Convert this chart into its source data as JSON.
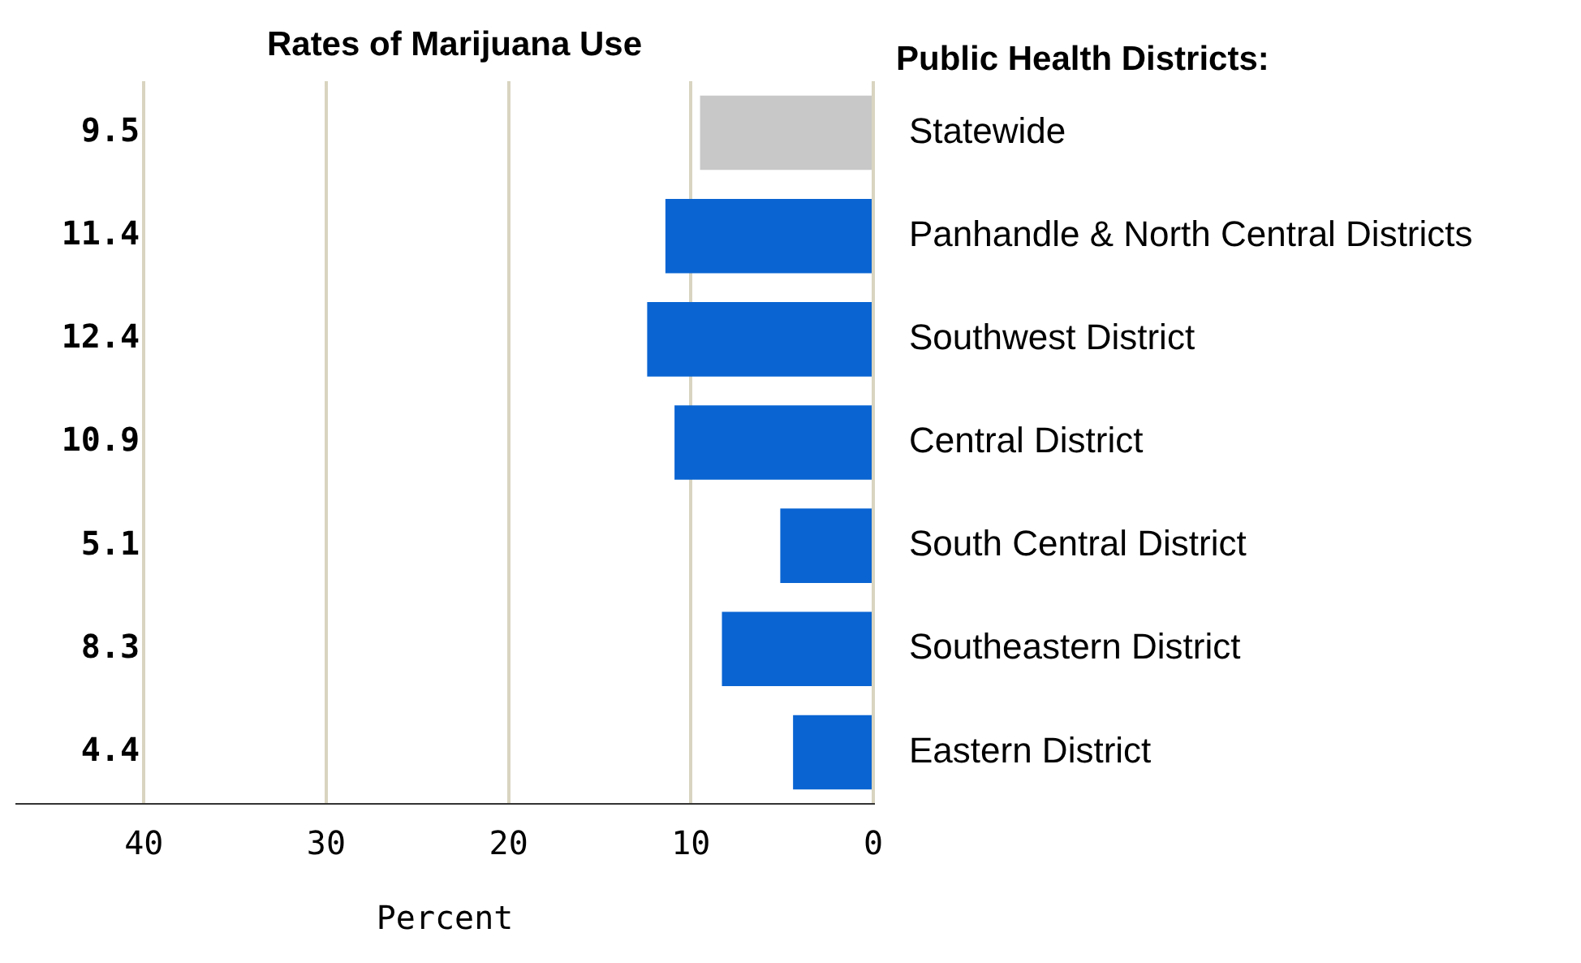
{
  "chart_data": {
    "type": "bar",
    "orientation": "horizontal",
    "title": "Rates of Marijuana Use",
    "ylabel": "Public Health Districts:",
    "xlabel": "Percent",
    "categories": [
      "Statewide",
      "Panhandle & North Central Districts",
      "Southwest District",
      "Central District",
      "South Central District",
      "Southeastern District",
      "Eastern District"
    ],
    "values": [
      9.5,
      11.4,
      12.4,
      10.9,
      5.1,
      8.3,
      4.4
    ],
    "colors": [
      "#c8c8c8",
      "#0a64d2",
      "#0a64d2",
      "#0a64d2",
      "#0a64d2",
      "#0a64d2",
      "#0a64d2"
    ],
    "xlim": [
      47,
      0
    ],
    "xticks": [
      40,
      30,
      20,
      10,
      0
    ],
    "grid": "x",
    "data_labels": true,
    "legend": false
  }
}
